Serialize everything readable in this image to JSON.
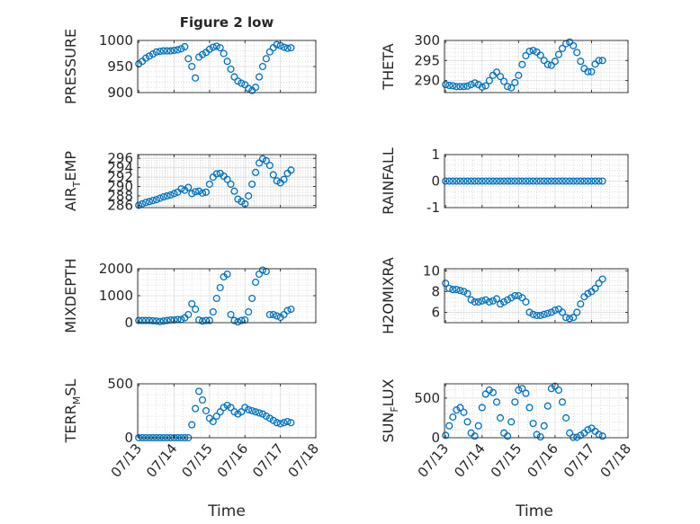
{
  "figure": {
    "title": "Figure 2 low",
    "xlabel": "Time",
    "x_tick_labels": [
      "07/13",
      "07/14",
      "07/15",
      "07/16",
      "07/17",
      "07/18"
    ],
    "marker_color": "#0072BD",
    "marker": "open-circle"
  },
  "chart_data": [
    {
      "type": "scatter",
      "ylabel": "PRESSURE",
      "yticks": [
        900,
        950,
        1000
      ],
      "ylim": [
        900,
        1000
      ],
      "grid": true,
      "x": [
        0,
        0.1,
        0.2,
        0.3,
        0.4,
        0.5,
        0.6,
        0.7,
        0.8,
        0.9,
        1.0,
        1.1,
        1.2,
        1.3,
        1.4,
        1.5,
        1.6,
        1.7,
        1.8,
        1.9,
        2.0,
        2.1,
        2.2,
        2.3,
        2.4,
        2.5,
        2.6,
        2.7,
        2.8,
        2.9,
        3.0,
        3.1,
        3.2,
        3.3,
        3.4,
        3.5,
        3.6,
        3.7,
        3.8,
        3.9,
        4.0,
        4.1,
        4.2,
        4.3
      ],
      "y": [
        955,
        960,
        966,
        970,
        974,
        978,
        979,
        980,
        980,
        980,
        981,
        982,
        984,
        988,
        965,
        950,
        928,
        968,
        973,
        977,
        983,
        987,
        989,
        986,
        975,
        960,
        945,
        930,
        922,
        918,
        915,
        908,
        904,
        910,
        930,
        950,
        965,
        978,
        986,
        992,
        990,
        987,
        985,
        986
      ]
    },
    {
      "type": "scatter",
      "ylabel": "THETA",
      "yticks": [
        290,
        295,
        300
      ],
      "ylim": [
        287,
        300
      ],
      "grid": true,
      "x": [
        0,
        0.1,
        0.2,
        0.3,
        0.4,
        0.5,
        0.6,
        0.7,
        0.8,
        0.9,
        1.0,
        1.1,
        1.2,
        1.3,
        1.4,
        1.5,
        1.6,
        1.7,
        1.8,
        1.9,
        2.0,
        2.1,
        2.2,
        2.3,
        2.4,
        2.5,
        2.6,
        2.7,
        2.8,
        2.9,
        3.0,
        3.1,
        3.2,
        3.3,
        3.4,
        3.5,
        3.6,
        3.7,
        3.8,
        3.9,
        4.0,
        4.1,
        4.2,
        4.3
      ],
      "y": [
        289.0,
        288.8,
        288.7,
        288.5,
        288.5,
        288.5,
        288.6,
        289.0,
        289.4,
        289.0,
        288.4,
        288.7,
        290.0,
        291.3,
        292.1,
        291.0,
        289.8,
        288.5,
        288.2,
        289.5,
        291.3,
        294.0,
        296.2,
        297.3,
        297.5,
        297.1,
        296.3,
        295.0,
        294.0,
        293.8,
        294.8,
        296.5,
        298.0,
        299.2,
        299.6,
        298.7,
        297.0,
        294.8,
        293.0,
        292.2,
        292.2,
        294.1,
        295.0,
        295.0
      ]
    },
    {
      "type": "scatter",
      "ylabel": "AIR_TEMP",
      "yticks": [
        286,
        288,
        290,
        292,
        294,
        296
      ],
      "ylim": [
        285.5,
        296.8
      ],
      "grid": true,
      "x": [
        0,
        0.1,
        0.2,
        0.3,
        0.4,
        0.5,
        0.6,
        0.7,
        0.8,
        0.9,
        1.0,
        1.1,
        1.2,
        1.3,
        1.4,
        1.5,
        1.6,
        1.7,
        1.8,
        1.9,
        2.0,
        2.1,
        2.2,
        2.3,
        2.4,
        2.5,
        2.6,
        2.7,
        2.8,
        2.9,
        3.0,
        3.1,
        3.2,
        3.3,
        3.4,
        3.5,
        3.6,
        3.7,
        3.8,
        3.9,
        4.0,
        4.1,
        4.2,
        4.3
      ],
      "y": [
        286.0,
        286.3,
        286.6,
        286.8,
        287.0,
        287.2,
        287.5,
        287.8,
        288.0,
        288.2,
        288.5,
        288.8,
        289.5,
        289.2,
        289.8,
        288.5,
        288.9,
        289.0,
        288.6,
        288.8,
        290.5,
        292.0,
        292.7,
        292.8,
        292.2,
        291.5,
        290.5,
        289.0,
        287.3,
        286.8,
        286.3,
        288.0,
        290.5,
        293.0,
        295.0,
        295.9,
        295.5,
        294.5,
        292.5,
        291.2,
        290.8,
        291.5,
        292.8,
        293.5
      ]
    },
    {
      "type": "scatter",
      "ylabel": "RAINFALL",
      "yticks": [
        -1,
        0,
        1
      ],
      "ylim": [
        -1,
        1
      ],
      "grid": true,
      "x": [
        0,
        0.1,
        0.2,
        0.3,
        0.4,
        0.5,
        0.6,
        0.7,
        0.8,
        0.9,
        1.0,
        1.1,
        1.2,
        1.3,
        1.4,
        1.5,
        1.6,
        1.7,
        1.8,
        1.9,
        2.0,
        2.1,
        2.2,
        2.3,
        2.4,
        2.5,
        2.6,
        2.7,
        2.8,
        2.9,
        3.0,
        3.1,
        3.2,
        3.3,
        3.4,
        3.5,
        3.6,
        3.7,
        3.8,
        3.9,
        4.0,
        4.1,
        4.2,
        4.3
      ],
      "y": [
        0,
        0,
        0,
        0,
        0,
        0,
        0,
        0,
        0,
        0,
        0,
        0,
        0,
        0,
        0,
        0,
        0,
        0,
        0,
        0,
        0,
        0,
        0,
        0,
        0,
        0,
        0,
        0,
        0,
        0,
        0,
        0,
        0,
        0,
        0,
        0,
        0,
        0,
        0,
        0,
        0,
        0,
        0,
        0
      ]
    },
    {
      "type": "scatter",
      "ylabel": "MIXDEPTH",
      "yticks": [
        0,
        1000,
        2000
      ],
      "ylim": [
        0,
        2000
      ],
      "grid": true,
      "x": [
        0,
        0.1,
        0.2,
        0.3,
        0.4,
        0.5,
        0.6,
        0.7,
        0.8,
        0.9,
        1.0,
        1.1,
        1.2,
        1.3,
        1.4,
        1.5,
        1.6,
        1.7,
        1.8,
        1.9,
        2.0,
        2.1,
        2.2,
        2.3,
        2.4,
        2.5,
        2.6,
        2.7,
        2.8,
        2.9,
        3.0,
        3.1,
        3.2,
        3.3,
        3.4,
        3.5,
        3.6,
        3.7,
        3.8,
        3.9,
        4.0,
        4.1,
        4.2,
        4.3
      ],
      "y": [
        80,
        80,
        80,
        80,
        70,
        60,
        40,
        60,
        80,
        100,
        100,
        120,
        120,
        180,
        300,
        700,
        500,
        100,
        60,
        80,
        80,
        400,
        900,
        1300,
        1700,
        1800,
        300,
        80,
        30,
        80,
        100,
        400,
        900,
        1500,
        1800,
        1950,
        1900,
        300,
        300,
        250,
        200,
        300,
        450,
        500
      ]
    },
    {
      "type": "scatter",
      "ylabel": "H2OMIXRA",
      "yticks": [
        6,
        8,
        10
      ],
      "ylim": [
        5,
        10.2
      ],
      "grid": true,
      "x": [
        0,
        0.1,
        0.2,
        0.3,
        0.4,
        0.5,
        0.6,
        0.7,
        0.8,
        0.9,
        1.0,
        1.1,
        1.2,
        1.3,
        1.4,
        1.5,
        1.6,
        1.7,
        1.8,
        1.9,
        2.0,
        2.1,
        2.2,
        2.3,
        2.4,
        2.5,
        2.6,
        2.7,
        2.8,
        2.9,
        3.0,
        3.1,
        3.2,
        3.3,
        3.4,
        3.5,
        3.6,
        3.7,
        3.8,
        3.9,
        4.0,
        4.1,
        4.2,
        4.3
      ],
      "y": [
        8.8,
        8.3,
        8.2,
        8.2,
        8.1,
        8.0,
        7.8,
        7.2,
        7.0,
        7.0,
        7.1,
        7.2,
        7.0,
        7.1,
        7.3,
        6.8,
        7.0,
        7.2,
        7.4,
        7.6,
        7.6,
        7.4,
        7.0,
        6.0,
        5.8,
        5.7,
        5.7,
        5.8,
        5.9,
        6.0,
        6.2,
        6.3,
        6.0,
        5.5,
        5.4,
        5.5,
        6.0,
        6.8,
        7.5,
        7.8,
        8.0,
        8.3,
        8.8,
        9.2
      ]
    },
    {
      "type": "scatter",
      "ylabel": "TERR_MSL",
      "yticks": [
        0,
        500
      ],
      "ylim": [
        0,
        500
      ],
      "grid": true,
      "x": [
        0,
        0.1,
        0.2,
        0.3,
        0.4,
        0.5,
        0.6,
        0.7,
        0.8,
        0.9,
        1.0,
        1.1,
        1.2,
        1.3,
        1.4,
        1.5,
        1.6,
        1.7,
        1.8,
        1.9,
        2.0,
        2.1,
        2.2,
        2.3,
        2.4,
        2.5,
        2.6,
        2.7,
        2.8,
        2.9,
        3.0,
        3.1,
        3.2,
        3.3,
        3.4,
        3.5,
        3.6,
        3.7,
        3.8,
        3.9,
        4.0,
        4.1,
        4.2,
        4.3
      ],
      "y": [
        0,
        0,
        0,
        0,
        0,
        0,
        0,
        0,
        0,
        0,
        0,
        0,
        0,
        0,
        0,
        120,
        270,
        430,
        350,
        250,
        180,
        150,
        200,
        240,
        280,
        300,
        280,
        240,
        220,
        240,
        280,
        260,
        250,
        240,
        230,
        220,
        200,
        180,
        160,
        140,
        130,
        140,
        150,
        140
      ]
    },
    {
      "type": "scatter",
      "ylabel": "SUN_FLUX",
      "yticks": [
        0,
        500
      ],
      "ylim": [
        0,
        680
      ],
      "grid": true,
      "x": [
        0,
        0.1,
        0.2,
        0.3,
        0.4,
        0.5,
        0.6,
        0.7,
        0.8,
        0.9,
        1.0,
        1.1,
        1.2,
        1.3,
        1.4,
        1.5,
        1.6,
        1.7,
        1.8,
        1.9,
        2.0,
        2.1,
        2.2,
        2.3,
        2.4,
        2.5,
        2.6,
        2.7,
        2.8,
        2.9,
        3.0,
        3.1,
        3.2,
        3.3,
        3.4,
        3.5,
        3.6,
        3.7,
        3.8,
        3.9,
        4.0,
        4.1,
        4.2,
        4.3
      ],
      "y": [
        30,
        150,
        260,
        350,
        380,
        320,
        200,
        60,
        20,
        150,
        380,
        550,
        600,
        570,
        450,
        250,
        60,
        20,
        200,
        450,
        600,
        620,
        560,
        380,
        180,
        40,
        10,
        150,
        400,
        620,
        650,
        600,
        450,
        250,
        60,
        5,
        5,
        30,
        60,
        100,
        120,
        80,
        40,
        20
      ]
    }
  ]
}
